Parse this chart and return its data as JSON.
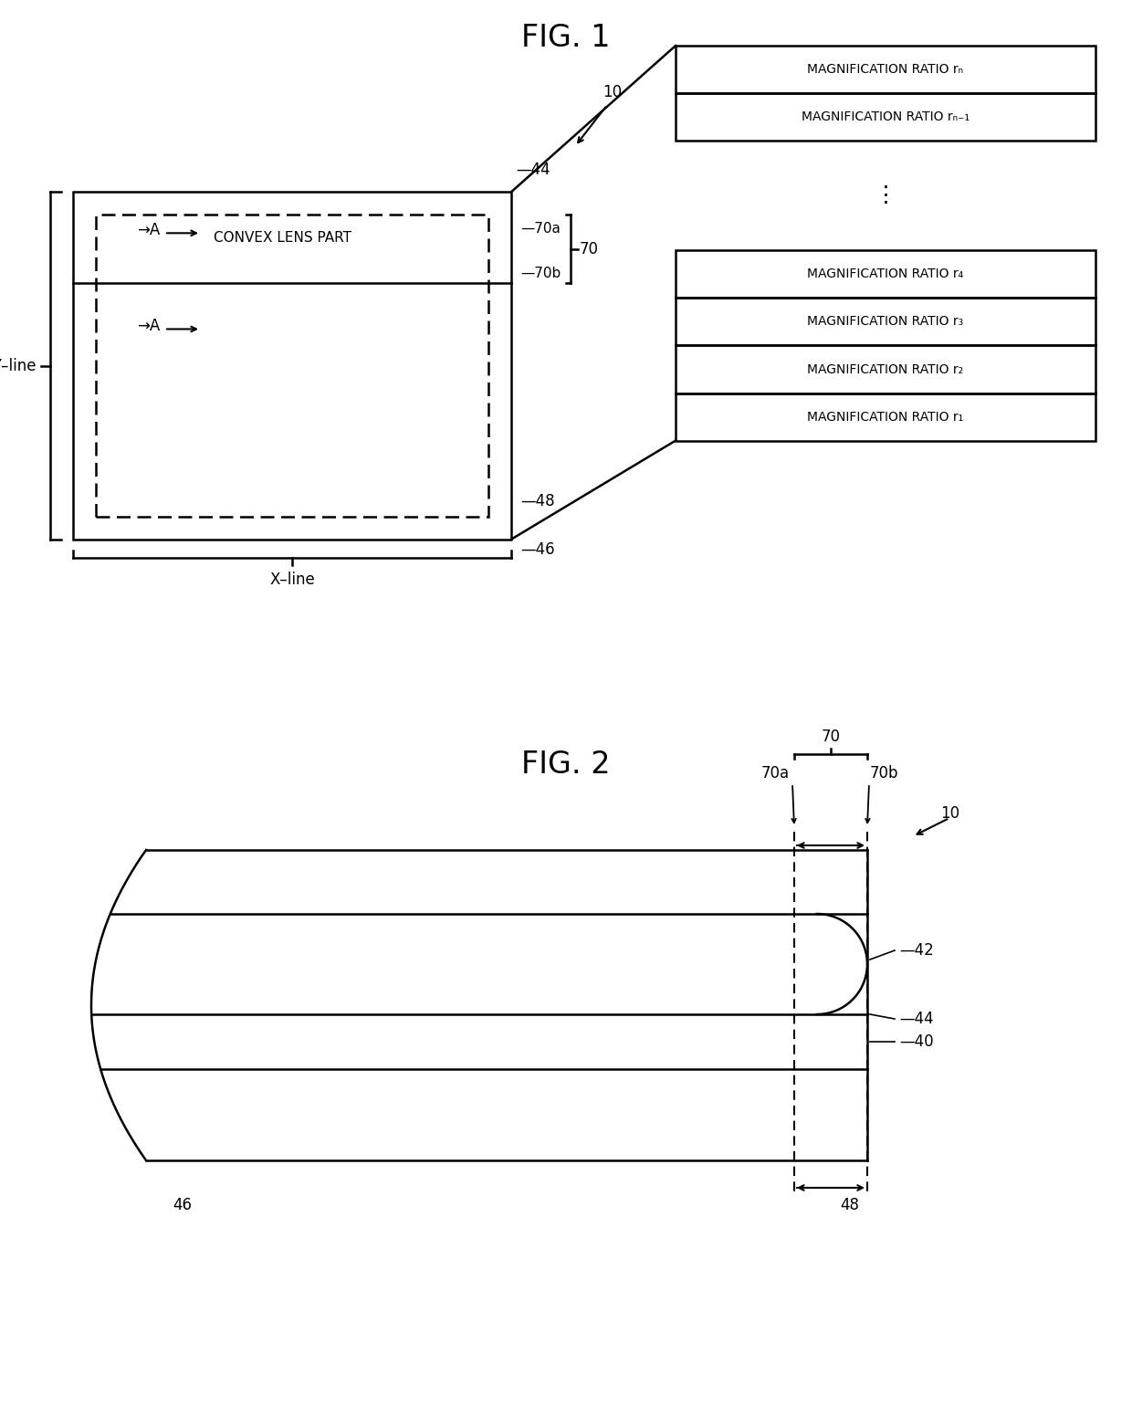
{
  "fig1_title": "FIG. 1",
  "fig2_title": "FIG. 2",
  "background_color": "#ffffff",
  "line_color": "#000000",
  "font_size_title": 24,
  "font_size_label": 12,
  "font_size_ref": 12,
  "magnification_labels_top": [
    "MAGNIFICATION RATIO rₙ",
    "MAGNIFICATION RATIO rₙ₋₁"
  ],
  "magnification_labels_bottom": [
    "MAGNIFICATION RATIO r₄",
    "MAGNIFICATION RATIO r₃",
    "MAGNIFICATION RATIO r₂",
    "MAGNIFICATION RATIO r₁"
  ]
}
